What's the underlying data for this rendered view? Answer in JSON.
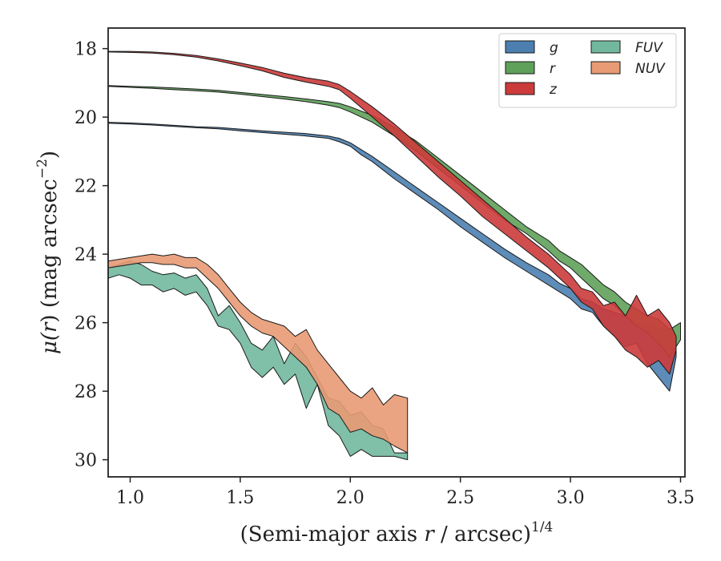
{
  "chart_data": {
    "type": "area",
    "xlabel_main": "(Semi-major axis ",
    "xlabel_var": "r",
    "xlabel_rest": " / arcsec)",
    "xlabel_sup": "1/4",
    "ylabel_main": "μ(",
    "ylabel_var": "r",
    "ylabel_rest": ") (mag arcsec",
    "ylabel_sup": "−2",
    "ylabel_end": ")",
    "xlim": [
      0.9,
      3.52
    ],
    "ylim": [
      30.5,
      17.4
    ],
    "y_inverted": true,
    "xticks": [
      1.0,
      1.5,
      2.0,
      2.5,
      3.0,
      3.5
    ],
    "xtick_labels": [
      "1.0",
      "1.5",
      "2.0",
      "2.5",
      "3.0",
      "3.5"
    ],
    "yticks": [
      18,
      20,
      22,
      24,
      26,
      28,
      30
    ],
    "ytick_labels": [
      "18",
      "20",
      "22",
      "24",
      "26",
      "28",
      "30"
    ],
    "grid": false,
    "legend_placement": "top-right",
    "legend_columns": 2,
    "series": [
      {
        "name": "g",
        "color": "#4c7fb0",
        "x": [
          0.9,
          1.0,
          1.1,
          1.2,
          1.3,
          1.4,
          1.5,
          1.6,
          1.7,
          1.8,
          1.9,
          1.95,
          2.0,
          2.05,
          2.1,
          2.2,
          2.3,
          2.4,
          2.5,
          2.6,
          2.7,
          2.8,
          2.9,
          2.95,
          3.0,
          3.05,
          3.1,
          3.15,
          3.2,
          3.25,
          3.3,
          3.35,
          3.4,
          3.45,
          3.48
        ],
        "y1": [
          20.15,
          20.17,
          20.2,
          20.24,
          20.28,
          20.3,
          20.35,
          20.4,
          20.44,
          20.48,
          20.55,
          20.62,
          20.75,
          20.95,
          21.15,
          21.6,
          22.05,
          22.5,
          22.95,
          23.4,
          23.85,
          24.25,
          24.6,
          24.85,
          25.0,
          25.3,
          25.4,
          25.6,
          25.7,
          25.8,
          26.0,
          26.05,
          26.2,
          26.2,
          26.5
        ],
        "y2": [
          20.18,
          20.2,
          20.23,
          20.27,
          20.31,
          20.34,
          20.4,
          20.45,
          20.5,
          20.55,
          20.62,
          20.72,
          20.85,
          21.1,
          21.3,
          21.8,
          22.25,
          22.7,
          23.2,
          23.65,
          24.1,
          24.5,
          24.9,
          25.1,
          25.3,
          25.6,
          25.7,
          26.1,
          26.4,
          26.7,
          26.6,
          27.2,
          27.6,
          28.0,
          27.0
        ]
      },
      {
        "name": "r",
        "color": "#5fa15a",
        "x": [
          0.9,
          1.0,
          1.1,
          1.2,
          1.3,
          1.4,
          1.5,
          1.6,
          1.7,
          1.8,
          1.9,
          1.95,
          2.0,
          2.1,
          2.2,
          2.3,
          2.4,
          2.5,
          2.6,
          2.7,
          2.8,
          2.9,
          2.95,
          3.0,
          3.05,
          3.1,
          3.15,
          3.2,
          3.25,
          3.3,
          3.35,
          3.4,
          3.45,
          3.5
        ],
        "y1": [
          19.08,
          19.1,
          19.12,
          19.15,
          19.18,
          19.22,
          19.28,
          19.34,
          19.4,
          19.47,
          19.55,
          19.6,
          19.7,
          19.95,
          20.3,
          20.7,
          21.2,
          21.7,
          22.2,
          22.7,
          23.2,
          23.6,
          23.9,
          24.1,
          24.3,
          24.6,
          24.9,
          25.1,
          25.4,
          25.6,
          25.8,
          25.9,
          26.2,
          26.0
        ],
        "y2": [
          19.1,
          19.13,
          19.16,
          19.2,
          19.23,
          19.27,
          19.33,
          19.4,
          19.47,
          19.55,
          19.65,
          19.72,
          19.85,
          20.15,
          20.55,
          21.0,
          21.5,
          22.0,
          22.5,
          23.0,
          23.4,
          23.9,
          24.2,
          24.4,
          24.7,
          25.0,
          25.3,
          25.5,
          25.8,
          26.1,
          26.3,
          26.6,
          27.0,
          26.5
        ]
      },
      {
        "name": "z",
        "color": "#cc3b3b",
        "x": [
          0.9,
          1.0,
          1.1,
          1.2,
          1.3,
          1.4,
          1.5,
          1.6,
          1.7,
          1.8,
          1.9,
          1.95,
          2.0,
          2.1,
          2.2,
          2.3,
          2.4,
          2.5,
          2.6,
          2.7,
          2.8,
          2.9,
          2.95,
          3.0,
          3.05,
          3.1,
          3.15,
          3.2,
          3.25,
          3.3,
          3.35,
          3.4,
          3.45,
          3.48
        ],
        "y1": [
          18.08,
          18.08,
          18.1,
          18.14,
          18.2,
          18.3,
          18.42,
          18.55,
          18.72,
          18.85,
          18.95,
          19.05,
          19.25,
          19.7,
          20.2,
          20.75,
          21.3,
          21.85,
          22.4,
          22.95,
          23.5,
          24.0,
          24.3,
          24.6,
          25.0,
          25.1,
          25.5,
          25.4,
          25.8,
          25.2,
          25.8,
          25.6,
          26.0,
          26.4
        ],
        "y2": [
          18.1,
          18.11,
          18.13,
          18.18,
          18.25,
          18.36,
          18.5,
          18.65,
          18.84,
          18.98,
          19.1,
          19.2,
          19.45,
          20.0,
          20.55,
          21.15,
          21.75,
          22.3,
          22.9,
          23.4,
          23.9,
          24.4,
          24.7,
          25.0,
          25.4,
          25.6,
          26.1,
          26.4,
          26.8,
          27.0,
          27.3,
          27.1,
          27.5,
          26.8
        ]
      },
      {
        "name": "FUV",
        "color": "#72b89f",
        "x": [
          0.9,
          0.95,
          1.0,
          1.05,
          1.1,
          1.15,
          1.2,
          1.25,
          1.3,
          1.35,
          1.4,
          1.45,
          1.5,
          1.55,
          1.6,
          1.65,
          1.7,
          1.75,
          1.8,
          1.85,
          1.9,
          1.95,
          2.0,
          2.05,
          2.1,
          2.15,
          2.2,
          2.26
        ],
        "y1": [
          24.4,
          24.3,
          24.2,
          24.3,
          24.5,
          24.6,
          24.55,
          24.7,
          24.6,
          25.0,
          25.8,
          25.5,
          26.0,
          26.6,
          26.8,
          26.4,
          27.2,
          26.6,
          27.0,
          27.6,
          28.2,
          28.3,
          28.7,
          28.6,
          29.0,
          29.1,
          29.8,
          29.8
        ],
        "y2": [
          24.7,
          24.6,
          24.7,
          24.9,
          24.9,
          25.1,
          25.0,
          25.2,
          25.1,
          25.5,
          26.1,
          26.2,
          26.6,
          27.3,
          27.6,
          27.3,
          27.8,
          27.5,
          28.5,
          27.8,
          29.0,
          29.3,
          29.9,
          29.7,
          29.9,
          29.9,
          29.9,
          30.0
        ]
      },
      {
        "name": "NUV",
        "color": "#e89a74",
        "x": [
          0.9,
          0.95,
          1.0,
          1.05,
          1.1,
          1.15,
          1.2,
          1.25,
          1.3,
          1.35,
          1.4,
          1.45,
          1.5,
          1.55,
          1.6,
          1.65,
          1.7,
          1.75,
          1.8,
          1.85,
          1.9,
          1.95,
          2.0,
          2.05,
          2.1,
          2.15,
          2.2,
          2.26
        ],
        "y1": [
          24.2,
          24.15,
          24.1,
          24.05,
          24.0,
          24.05,
          24.0,
          24.1,
          24.1,
          24.3,
          24.6,
          25.0,
          25.4,
          25.7,
          25.9,
          26.0,
          26.1,
          26.4,
          26.2,
          26.8,
          27.2,
          27.6,
          28.0,
          28.2,
          27.9,
          28.4,
          28.1,
          28.2
        ],
        "y2": [
          24.4,
          24.35,
          24.3,
          24.25,
          24.25,
          24.3,
          24.3,
          24.4,
          24.4,
          24.7,
          25.0,
          25.4,
          25.8,
          26.1,
          26.3,
          26.4,
          26.7,
          27.0,
          27.3,
          27.8,
          28.5,
          28.7,
          29.2,
          29.1,
          29.3,
          29.4,
          29.6,
          29.8
        ]
      }
    ]
  }
}
